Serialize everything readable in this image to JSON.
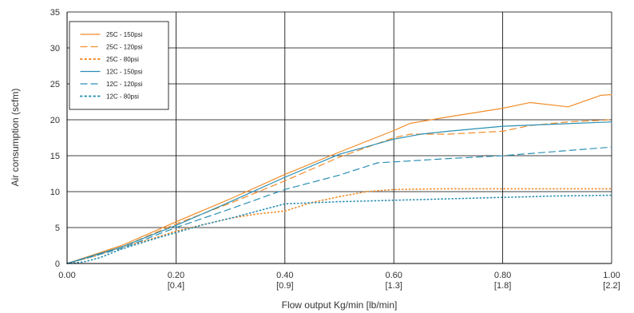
{
  "chart_data": {
    "type": "line",
    "title": "",
    "xlabel": "Flow output Kg/min [lb/min]",
    "ylabel": "Air consumption (scfm)",
    "xlim": [
      0,
      1.0
    ],
    "ylim": [
      0,
      35
    ],
    "x_ticks": [
      0.0,
      0.2,
      0.4,
      0.6,
      0.8,
      1.0
    ],
    "x_tick_labels": [
      "0.00",
      "0.20",
      "0.40",
      "0.60",
      "0.80",
      "1.00"
    ],
    "x_tick_sublabels": [
      "",
      "[0.4]",
      "[0.9]",
      "[1.3]",
      "[1.8]",
      "[2.2]"
    ],
    "y_ticks": [
      0,
      5,
      10,
      15,
      20,
      25,
      30,
      35
    ],
    "grid": true,
    "legend_position": "top-left",
    "series": [
      {
        "name": "25C - 150psi",
        "color": "#F28C28",
        "style": "solid",
        "points": [
          [
            0.0,
            0.0
          ],
          [
            0.1,
            2.5
          ],
          [
            0.2,
            5.8
          ],
          [
            0.3,
            9.0
          ],
          [
            0.4,
            12.4
          ],
          [
            0.5,
            15.5
          ],
          [
            0.6,
            18.5
          ],
          [
            0.63,
            19.5
          ],
          [
            0.7,
            20.4
          ],
          [
            0.8,
            21.6
          ],
          [
            0.85,
            22.4
          ],
          [
            0.92,
            21.8
          ],
          [
            0.98,
            23.4
          ],
          [
            1.0,
            23.5
          ]
        ]
      },
      {
        "name": "25C - 120psi",
        "color": "#F28C28",
        "style": "dashed",
        "points": [
          [
            0.0,
            0.0
          ],
          [
            0.1,
            2.3
          ],
          [
            0.2,
            5.5
          ],
          [
            0.3,
            8.4
          ],
          [
            0.4,
            11.5
          ],
          [
            0.5,
            14.8
          ],
          [
            0.6,
            17.5
          ],
          [
            0.63,
            18.0
          ],
          [
            0.7,
            18.0
          ],
          [
            0.8,
            18.4
          ],
          [
            0.85,
            19.2
          ],
          [
            0.92,
            19.7
          ],
          [
            1.0,
            20.0
          ]
        ]
      },
      {
        "name": "25C - 80psi",
        "color": "#F28C28",
        "style": "dotted",
        "points": [
          [
            0.0,
            0.0
          ],
          [
            0.05,
            1.0
          ],
          [
            0.1,
            2.3
          ],
          [
            0.15,
            3.3
          ],
          [
            0.2,
            4.5
          ],
          [
            0.25,
            5.4
          ],
          [
            0.3,
            6.3
          ],
          [
            0.35,
            6.9
          ],
          [
            0.4,
            7.3
          ],
          [
            0.45,
            8.5
          ],
          [
            0.5,
            9.3
          ],
          [
            0.55,
            10.0
          ],
          [
            0.6,
            10.3
          ],
          [
            0.7,
            10.4
          ],
          [
            0.8,
            10.4
          ],
          [
            1.0,
            10.4
          ]
        ]
      },
      {
        "name": "12C - 150psi",
        "color": "#2A8FB3",
        "style": "solid",
        "points": [
          [
            0.0,
            0.0
          ],
          [
            0.1,
            2.3
          ],
          [
            0.2,
            5.3
          ],
          [
            0.3,
            8.6
          ],
          [
            0.4,
            12.0
          ],
          [
            0.5,
            15.2
          ],
          [
            0.6,
            17.3
          ],
          [
            0.65,
            18.0
          ],
          [
            0.7,
            18.4
          ],
          [
            0.8,
            19.1
          ],
          [
            0.9,
            19.4
          ],
          [
            1.0,
            19.7
          ]
        ]
      },
      {
        "name": "12C - 120psi",
        "color": "#2A8FB3",
        "style": "dashed",
        "points": [
          [
            0.0,
            0.0
          ],
          [
            0.1,
            2.1
          ],
          [
            0.2,
            5.0
          ],
          [
            0.3,
            7.6
          ],
          [
            0.4,
            10.3
          ],
          [
            0.5,
            12.3
          ],
          [
            0.57,
            14.0
          ],
          [
            0.7,
            14.6
          ],
          [
            0.8,
            15.0
          ],
          [
            0.9,
            15.6
          ],
          [
            1.0,
            16.2
          ]
        ]
      },
      {
        "name": "12C - 80psi",
        "color": "#2A8FB3",
        "style": "dotted",
        "points": [
          [
            0.0,
            0.0
          ],
          [
            0.03,
            0.2
          ],
          [
            0.06,
            0.8
          ],
          [
            0.1,
            2.0
          ],
          [
            0.15,
            3.2
          ],
          [
            0.2,
            4.3
          ],
          [
            0.25,
            5.4
          ],
          [
            0.3,
            6.3
          ],
          [
            0.35,
            7.3
          ],
          [
            0.4,
            8.3
          ],
          [
            0.5,
            8.6
          ],
          [
            0.6,
            8.8
          ],
          [
            0.7,
            9.0
          ],
          [
            0.8,
            9.2
          ],
          [
            0.9,
            9.4
          ],
          [
            1.0,
            9.5
          ]
        ]
      }
    ]
  }
}
